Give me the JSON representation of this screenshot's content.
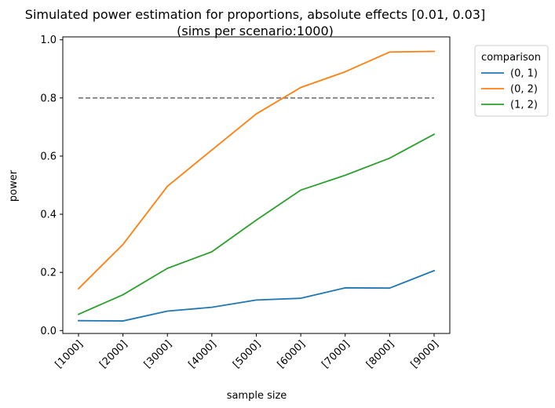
{
  "chart_data": {
    "type": "line",
    "title": "Simulated power estimation for proportions, absolute effects [0.01, 0.03]",
    "subtitle": "(sims per scenario:1000)",
    "xlabel": "sample size",
    "ylabel": "power",
    "categories": [
      "[1000]",
      "[2000]",
      "[3000]",
      "[4000]",
      "[5000]",
      "[6000]",
      "[7000]",
      "[8000]",
      "[9000]"
    ],
    "ylim": [
      -0.01,
      1.01
    ],
    "yticks": [
      0.0,
      0.2,
      0.4,
      0.6,
      0.8,
      1.0
    ],
    "ytick_labels": [
      "0.0",
      "0.2",
      "0.4",
      "0.6",
      "0.8",
      "1.0"
    ],
    "grid": false,
    "legend": {
      "title": "comparison",
      "placement": "outside-top-right"
    },
    "series": [
      {
        "name": "(0, 1)",
        "color": "#1f77b4",
        "values": [
          0.034,
          0.033,
          0.067,
          0.08,
          0.105,
          0.111,
          0.147,
          0.146,
          0.206
        ]
      },
      {
        "name": "(0, 2)",
        "color": "#ff7f0e",
        "values": [
          0.144,
          0.296,
          0.496,
          0.621,
          0.745,
          0.836,
          0.89,
          0.958,
          0.96
        ]
      },
      {
        "name": "(1, 2)",
        "color": "#2ca02c",
        "values": [
          0.056,
          0.123,
          0.214,
          0.271,
          0.38,
          0.483,
          0.534,
          0.593,
          0.675
        ]
      }
    ],
    "reference_line": {
      "y": 0.8,
      "color": "#808080",
      "style": "dashed"
    }
  }
}
